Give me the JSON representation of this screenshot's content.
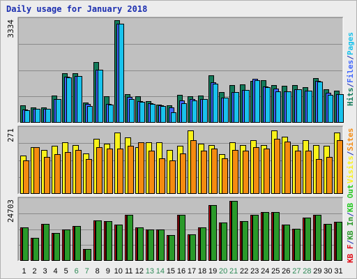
{
  "title": "Daily usage for January 2018",
  "colors": {
    "background": "#ececec",
    "panel": "#c0c0c0",
    "grid": "#8a8a8a",
    "pages": "#19c2ec",
    "files": "#3f66ff",
    "hits": "#137a5a",
    "visits": "#f9f21a",
    "sites": "#f58b10",
    "kb_in": "#22c91f",
    "kb_out": "#2a9a2a",
    "kb_f": "#e00a14",
    "weekday_label": "#000000",
    "weekend_label": "#2e8b57"
  },
  "chart_data": [
    {
      "type": "bar",
      "name": "hits-panel",
      "ylabel": "3334",
      "ylim": [
        0,
        3334
      ],
      "legend": [
        {
          "text": "Hits",
          "color": "#137a5a"
        },
        {
          "text": "Files",
          "color": "#3f66ff"
        },
        {
          "text": "Pages",
          "color": "#19c2ec"
        }
      ],
      "series": [
        {
          "name": "Hits",
          "values": [
            560,
            510,
            510,
            880,
            1620,
            1620,
            660,
            1980,
            870,
            3334,
            920,
            870,
            700,
            600,
            570,
            900,
            860,
            880,
            1550,
            1000,
            1230,
            1250,
            1370,
            1380,
            1230,
            1200,
            1230,
            1160,
            1460,
            1090,
            1040
          ]
        },
        {
          "name": "Files",
          "values": [
            440,
            460,
            450,
            780,
            1500,
            1530,
            610,
            1730,
            620,
            3220,
            830,
            700,
            640,
            560,
            510,
            720,
            770,
            780,
            1310,
            820,
            1000,
            1070,
            1420,
            1180,
            1110,
            1010,
            1080,
            1040,
            1350,
            980,
            940
          ]
        },
        {
          "name": "Pages",
          "values": [
            410,
            460,
            450,
            780,
            1480,
            1530,
            550,
            1720,
            580,
            3210,
            770,
            670,
            620,
            550,
            350,
            640,
            730,
            770,
            1280,
            820,
            1000,
            1070,
            1380,
            1160,
            1030,
            1010,
            1080,
            1040,
            1330,
            910,
            930
          ]
        }
      ]
    },
    {
      "type": "bar",
      "name": "visits-panel",
      "ylabel": "271",
      "ylim": [
        0,
        271
      ],
      "legend": [
        {
          "text": "Visits",
          "color": "#f9f21a"
        },
        {
          "text": "Sites",
          "color": "#f58b10"
        }
      ],
      "series": [
        {
          "name": "Visits",
          "values": [
            160,
            195,
            185,
            200,
            215,
            205,
            170,
            230,
            210,
            255,
            235,
            195,
            215,
            215,
            185,
            200,
            265,
            210,
            205,
            165,
            215,
            205,
            225,
            205,
            265,
            240,
            205,
            225,
            205,
            200,
            255
          ]
        },
        {
          "name": "Sites",
          "values": [
            140,
            195,
            155,
            165,
            175,
            185,
            145,
            195,
            190,
            190,
            200,
            215,
            180,
            150,
            140,
            170,
            225,
            180,
            190,
            150,
            185,
            180,
            195,
            190,
            230,
            220,
            180,
            180,
            145,
            155,
            225
          ]
        }
      ]
    },
    {
      "type": "bar",
      "name": "kbytes-panel",
      "ylabel": "24703",
      "ylim": [
        0,
        24703
      ],
      "legend": [
        {
          "text": "KB F",
          "color": "#e00a14"
        },
        {
          "text": "/",
          "color": "#1a2db0"
        },
        {
          "text": "KB In",
          "color": "#2a9a2a"
        },
        {
          "text": "/",
          "color": "#1a2db0"
        },
        {
          "text": "KB Out",
          "color": "#22c91f"
        }
      ],
      "series": [
        {
          "name": "KB F",
          "values": [
            13600,
            9500,
            15000,
            11300,
            12800,
            14200,
            4800,
            16400,
            16300,
            14800,
            18600,
            13600,
            12800,
            12800,
            10500,
            18600,
            10900,
            13600,
            22800,
            15600,
            24400,
            16300,
            18600,
            20000,
            20000,
            14800,
            13100,
            17700,
            18600,
            15000,
            16000
          ]
        },
        {
          "name": "KB In",
          "values": [
            13600,
            9500,
            15000,
            11300,
            12800,
            14200,
            4800,
            16400,
            16300,
            14800,
            18600,
            13600,
            12800,
            12800,
            10500,
            18600,
            10900,
            13600,
            22800,
            15600,
            24400,
            16300,
            18600,
            20000,
            20000,
            14800,
            13100,
            17700,
            18600,
            15000,
            16000
          ]
        },
        {
          "name": "KB Out",
          "values": [
            13600,
            9500,
            15000,
            11300,
            12800,
            14200,
            4800,
            16400,
            16300,
            14800,
            18600,
            13600,
            12800,
            12800,
            10500,
            18600,
            10900,
            13600,
            22800,
            15600,
            24400,
            16300,
            18600,
            20000,
            20000,
            14800,
            13100,
            17700,
            18600,
            15000,
            16000
          ]
        }
      ]
    }
  ],
  "days": [
    "1",
    "2",
    "3",
    "4",
    "5",
    "6",
    "7",
    "8",
    "9",
    "10",
    "11",
    "12",
    "13",
    "14",
    "15",
    "16",
    "17",
    "18",
    "19",
    "20",
    "21",
    "22",
    "23",
    "24",
    "25",
    "26",
    "27",
    "28",
    "29",
    "30",
    "31"
  ],
  "weekend_days": [
    "6",
    "7",
    "13",
    "14",
    "20",
    "21",
    "27",
    "28"
  ]
}
